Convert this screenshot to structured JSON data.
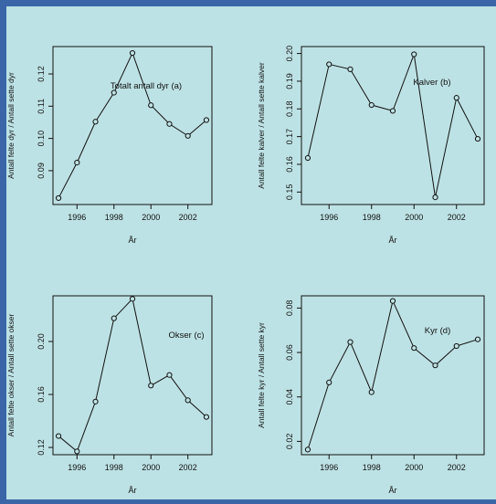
{
  "colors": {
    "border": "#3a66a8",
    "panel_bg": "#bde2e5",
    "ink": "#111111"
  },
  "chart_data": [
    {
      "type": "line",
      "title": "",
      "annotation": "Totalt antall dyr (a)",
      "xlabel": "År",
      "ylabel": "Antall felte dyr / Antall sette dyr",
      "x": [
        1995,
        1996,
        1997,
        1998,
        1999,
        2000,
        2001,
        2002,
        2003
      ],
      "values": [
        0.0815,
        0.0925,
        0.1052,
        0.1142,
        0.1265,
        0.1103,
        0.1045,
        0.1008,
        0.1057
      ],
      "xlim": [
        1994.7,
        2003.3
      ],
      "ylim": [
        0.0795,
        0.1285
      ],
      "xticks": [
        1996,
        1998,
        2000,
        2002
      ],
      "xtick_labels": [
        "1996",
        "1998",
        "2000",
        "2002"
      ],
      "yticks": [
        0.09,
        0.1,
        0.11,
        0.12
      ],
      "ytick_labels": [
        "0.09",
        "0.10",
        "0.11",
        "0.12"
      ],
      "grid": false,
      "marker": "open-circle"
    },
    {
      "type": "line",
      "title": "",
      "annotation": "Kalver (b)",
      "xlabel": "År",
      "ylabel": "Antall felte kalver / Antall sette kalver",
      "x": [
        1995,
        1996,
        1997,
        1998,
        1999,
        2000,
        2001,
        2002,
        2003
      ],
      "values": [
        0.1623,
        0.1961,
        0.1943,
        0.1814,
        0.1793,
        0.1997,
        0.1481,
        0.184,
        0.1692
      ],
      "xlim": [
        1994.7,
        2003.3
      ],
      "ylim": [
        0.1455,
        0.2025
      ],
      "xticks": [
        1996,
        1998,
        2000,
        2002
      ],
      "xtick_labels": [
        "1996",
        "1998",
        "2000",
        "2002"
      ],
      "yticks": [
        0.15,
        0.16,
        0.17,
        0.18,
        0.19,
        0.2
      ],
      "ytick_labels": [
        "0.15",
        "0.16",
        "0.17",
        "0.18",
        "0.19",
        "0.20"
      ],
      "grid": false,
      "marker": "open-circle"
    },
    {
      "type": "line",
      "title": "",
      "annotation": "Okser (c)",
      "xlabel": "År",
      "ylabel": "Antall felte okser / Antall sette okser",
      "x": [
        1995,
        1996,
        1997,
        1998,
        1999,
        2000,
        2001,
        2002,
        2003
      ],
      "values": [
        0.1286,
        0.117,
        0.1546,
        0.2175,
        0.2322,
        0.1667,
        0.1747,
        0.1556,
        0.143
      ],
      "xlim": [
        1994.7,
        2003.3
      ],
      "ylim": [
        0.1145,
        0.2345
      ],
      "xticks": [
        1996,
        1998,
        2000,
        2002
      ],
      "xtick_labels": [
        "1996",
        "1998",
        "2000",
        "2002"
      ],
      "yticks": [
        0.12,
        0.16,
        0.2
      ],
      "ytick_labels": [
        "0.12",
        "0.16",
        "0.20"
      ],
      "grid": false,
      "marker": "open-circle"
    },
    {
      "type": "line",
      "title": "",
      "annotation": "Kyr (d)",
      "xlabel": "År",
      "ylabel": "Antall felte kyr / Antall sette kyr",
      "x": [
        1995,
        1996,
        1997,
        1998,
        1999,
        2000,
        2001,
        2002,
        2003
      ],
      "values": [
        0.0163,
        0.0465,
        0.0647,
        0.0421,
        0.0832,
        0.062,
        0.0542,
        0.0629,
        0.0659
      ],
      "xlim": [
        1994.7,
        2003.3
      ],
      "ylim": [
        0.014,
        0.0855
      ],
      "xticks": [
        1996,
        1998,
        2000,
        2002
      ],
      "xtick_labels": [
        "1996",
        "1998",
        "2000",
        "2002"
      ],
      "yticks": [
        0.02,
        0.04,
        0.06,
        0.08
      ],
      "ytick_labels": [
        "0.02",
        "0.04",
        "0.06",
        "0.08"
      ],
      "grid": false,
      "marker": "open-circle"
    }
  ]
}
